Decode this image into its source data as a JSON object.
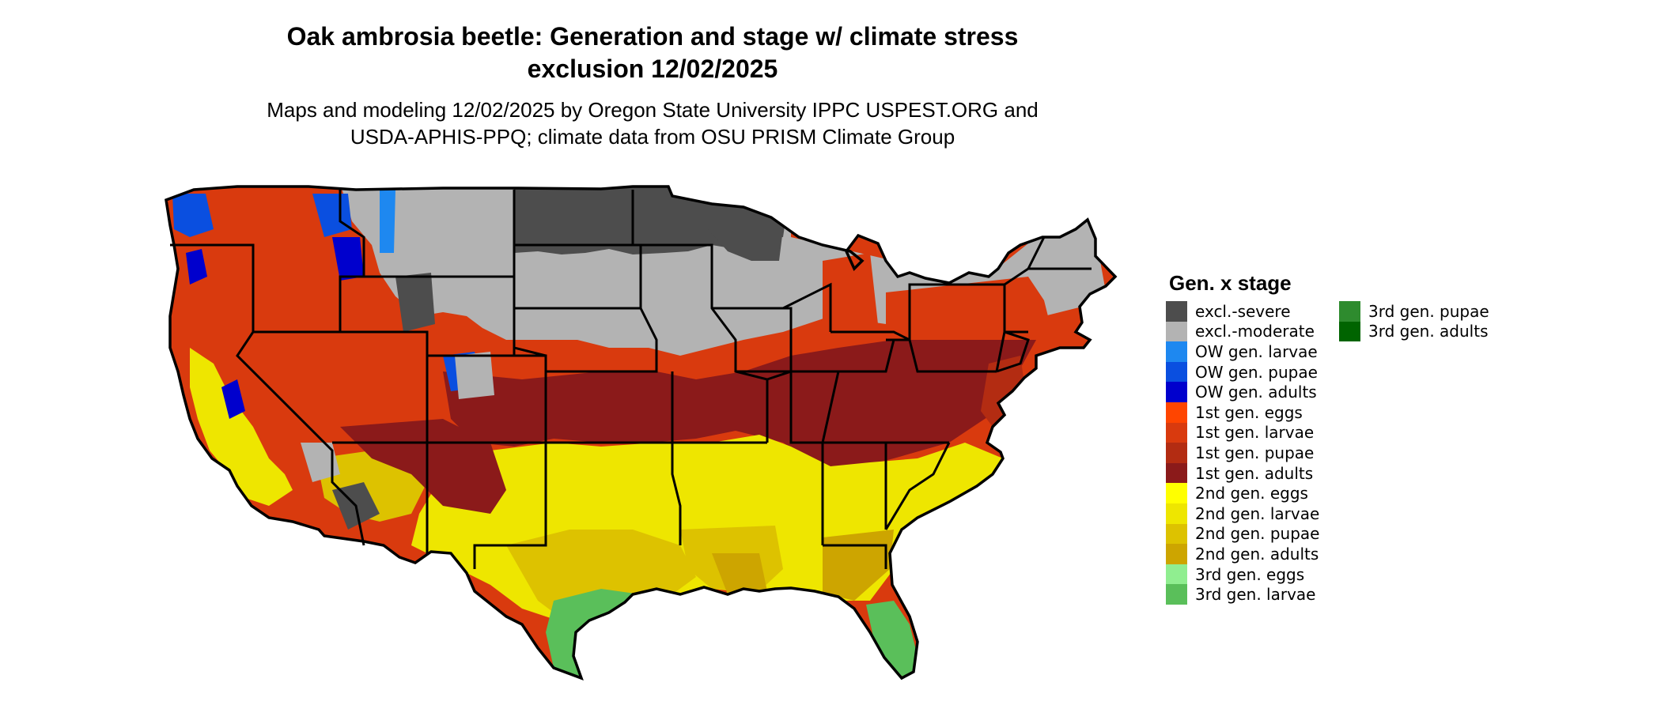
{
  "title_line1": "Oak ambrosia beetle: Generation and stage w/ climate stress",
  "title_line2": "exclusion 12/02/2025",
  "subtitle_line1": "Maps and modeling 12/02/2025 by Oregon State University IPPC USPEST.ORG and",
  "subtitle_line2": "USDA-APHIS-PPQ; climate data from OSU PRISM Climate Group",
  "legend": {
    "title": "Gen. x stage",
    "items": [
      {
        "label": "excl.-severe",
        "color": "#4d4d4d"
      },
      {
        "label": "excl.-moderate",
        "color": "#b3b3b3"
      },
      {
        "label": "OW gen. larvae",
        "color": "#1e88f0"
      },
      {
        "label": "OW gen. pupae",
        "color": "#0a4fe0"
      },
      {
        "label": "OW gen. adults",
        "color": "#0000cd"
      },
      {
        "label": "1st gen. eggs",
        "color": "#ff4500"
      },
      {
        "label": "1st gen. larvae",
        "color": "#d93a0e"
      },
      {
        "label": "1st gen. pupae",
        "color": "#b32c12"
      },
      {
        "label": "1st gen. adults",
        "color": "#8b1a1a"
      },
      {
        "label": "2nd gen. eggs",
        "color": "#ffff00"
      },
      {
        "label": "2nd gen. larvae",
        "color": "#eee600"
      },
      {
        "label": "2nd gen. pupae",
        "color": "#ddc200"
      },
      {
        "label": "2nd gen. adults",
        "color": "#cda500"
      },
      {
        "label": "3rd gen. eggs",
        "color": "#90ee90"
      },
      {
        "label": "3rd gen. larvae",
        "color": "#5abf5a"
      },
      {
        "label": "3rd gen. pupae",
        "color": "#2e8b2e"
      },
      {
        "label": "3rd gen. adults",
        "color": "#006400"
      }
    ]
  }
}
